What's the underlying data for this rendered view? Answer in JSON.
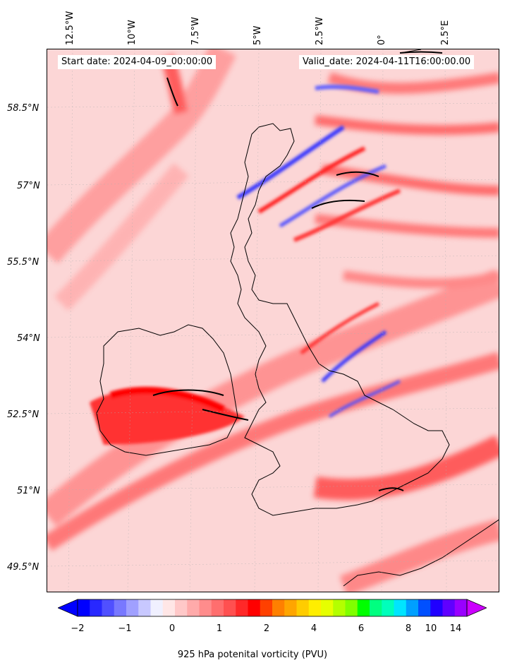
{
  "header": {
    "start_date": "Start date: 2024-04-09_00:00:00",
    "valid_date": "Valid_date: 2024-04-11T16:00:00.00"
  },
  "longitude_labels": [
    "12.5°W",
    "10°W",
    "7.5°W",
    "5°W",
    "2.5°W",
    "0°",
    "2.5°E"
  ],
  "latitude_labels": [
    "58.5°N",
    "57°N",
    "55.5°N",
    "54°N",
    "52.5°N",
    "51°N",
    "49.5°N"
  ],
  "colorbar": {
    "label": "925 hPa potenital vorticity (PVU)",
    "tick_labels": [
      "−2",
      "−1",
      "0",
      "1",
      "2",
      "4",
      "6",
      "8",
      "10",
      "14"
    ],
    "colors": [
      "#0000ff",
      "#2828ff",
      "#5050ff",
      "#7878ff",
      "#a0a0ff",
      "#c8c8ff",
      "#f0f0ff",
      "#ffe6e6",
      "#ffc8c8",
      "#ffaaaa",
      "#ff8c8c",
      "#ff6e6e",
      "#ff5050",
      "#ff2828",
      "#ff0000",
      "#ff4000",
      "#ff8000",
      "#ffa500",
      "#ffcc00",
      "#ffee00",
      "#e6ff00",
      "#b4ff00",
      "#80ff00",
      "#00ff00",
      "#00ff80",
      "#00ffbb",
      "#00e5ff",
      "#00a0ff",
      "#0050ff",
      "#2000ff",
      "#6000ff",
      "#9900ff"
    ],
    "extend_low_color": "#0000ff",
    "extend_high_color": "#cc00ff"
  }
}
